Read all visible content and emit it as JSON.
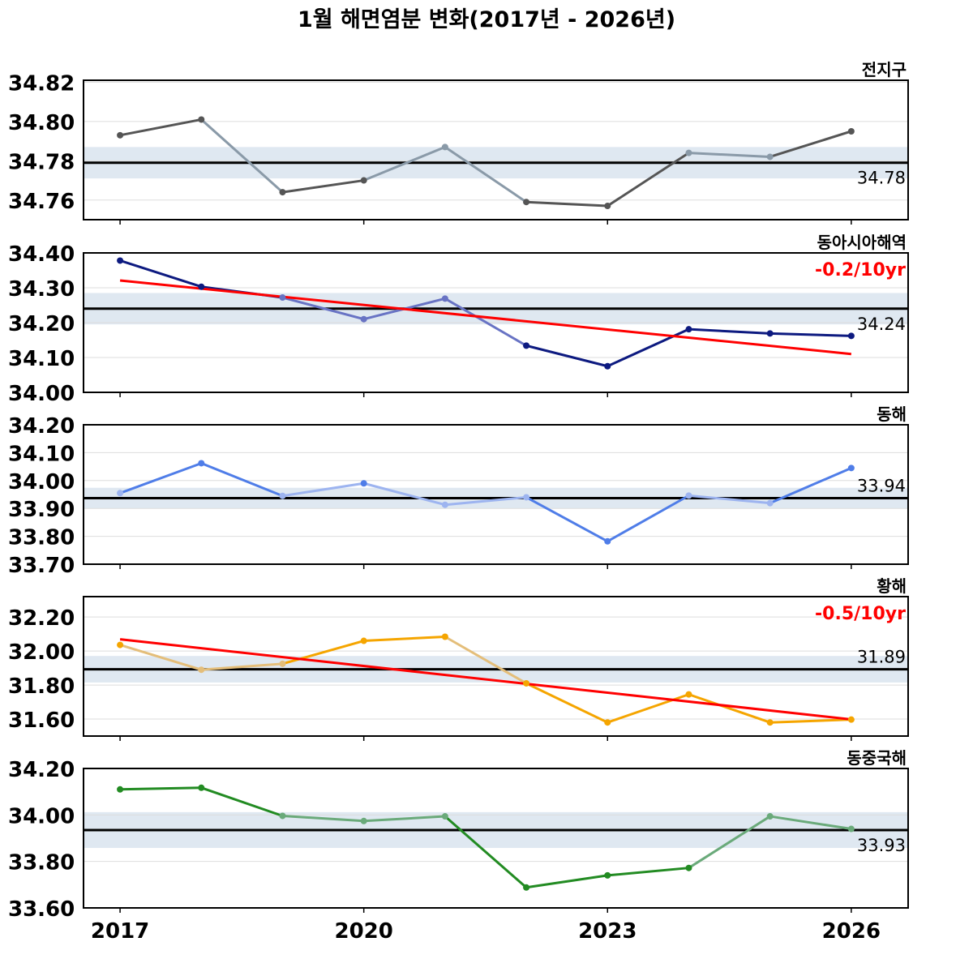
{
  "chart_data": {
    "type": "line",
    "title": "1월 해면염분 변화(2017년 - 2026년)",
    "x": [
      2017,
      2018,
      2019,
      2020,
      2021,
      2022,
      2023,
      2024,
      2025,
      2026
    ],
    "x_tick_labels": [
      "2017",
      "2020",
      "2023",
      "2026"
    ],
    "xlim": [
      2016.55,
      2026.7
    ],
    "grid": "horizontal",
    "panels": [
      {
        "name": "전지구",
        "color": "#555555",
        "trend_color": "#8a9aa8",
        "values": [
          34.793,
          34.801,
          34.764,
          34.77,
          34.787,
          34.759,
          34.757,
          34.784,
          34.782,
          34.795
        ],
        "mean": 34.779,
        "mean_label": "34.78",
        "band": [
          34.771,
          34.787
        ],
        "ylim": [
          34.75,
          34.821
        ],
        "yticks": [
          "34.76",
          "34.78",
          "34.80",
          "34.82"
        ],
        "ytick_values": [
          34.76,
          34.78,
          34.8,
          34.82
        ],
        "trend_label": "",
        "trend": null
      },
      {
        "name": "동아시아해역",
        "color": "#0d1a80",
        "trend_color": "#6873c4",
        "values": [
          34.378,
          34.303,
          34.272,
          34.21,
          34.269,
          34.134,
          34.075,
          34.181,
          34.169,
          34.162
        ],
        "mean": 34.24,
        "mean_label": "34.24",
        "band": [
          34.195,
          34.285
        ],
        "ylim": [
          34.0,
          34.4
        ],
        "yticks": [
          "34.00",
          "34.10",
          "34.20",
          "34.30",
          "34.40"
        ],
        "ytick_values": [
          34.0,
          34.1,
          34.2,
          34.3,
          34.4
        ],
        "trend_label": "-0.2/10yr",
        "trend": [
          34.321,
          34.11
        ]
      },
      {
        "name": "동해",
        "color": "#4f7de8",
        "trend_color": "#9db4f0",
        "values": [
          33.955,
          34.062,
          33.945,
          33.99,
          33.913,
          33.94,
          33.782,
          33.946,
          33.919,
          34.045
        ],
        "mean": 33.937,
        "mean_label": "33.94",
        "band": [
          33.9,
          33.974
        ],
        "ylim": [
          33.7,
          34.2
        ],
        "yticks": [
          "33.70",
          "33.80",
          "33.90",
          "34.00",
          "34.10",
          "34.20"
        ],
        "ytick_values": [
          33.7,
          33.8,
          33.9,
          34.0,
          34.1,
          34.2
        ],
        "trend_label": "",
        "trend": null
      },
      {
        "name": "황해",
        "color": "#f5a500",
        "trend_color": "#e4be7a",
        "values": [
          32.036,
          31.89,
          31.925,
          32.06,
          32.084,
          31.81,
          31.58,
          31.745,
          31.58,
          31.597
        ],
        "mean": 31.893,
        "mean_label": "31.89",
        "band": [
          31.815,
          31.971
        ],
        "ylim": [
          31.5,
          32.32
        ],
        "yticks": [
          "31.60",
          "31.80",
          "32.00",
          "32.20"
        ],
        "ytick_values": [
          31.6,
          31.8,
          32.0,
          32.2
        ],
        "trend_label": "-0.5/10yr",
        "trend": [
          32.069,
          31.598
        ]
      },
      {
        "name": "동중국해",
        "color": "#228b22",
        "trend_color": "#6aaa7a",
        "values": [
          34.11,
          34.117,
          33.996,
          33.974,
          33.994,
          33.688,
          33.74,
          33.772,
          33.994,
          33.94
        ],
        "mean": 33.935,
        "mean_label": "33.93",
        "band": [
          33.858,
          34.012
        ],
        "ylim": [
          33.6,
          34.2
        ],
        "yticks": [
          "33.60",
          "33.80",
          "34.00",
          "34.20"
        ],
        "ytick_values": [
          33.6,
          33.8,
          34.0,
          34.2
        ],
        "trend_label": "",
        "trend": null
      }
    ]
  },
  "colors": {
    "band": "#dfe8f1",
    "mean_line": "#000000",
    "trend_line": "#ff0000",
    "trend_text": "#ff0000",
    "grid": "#dddddd"
  }
}
